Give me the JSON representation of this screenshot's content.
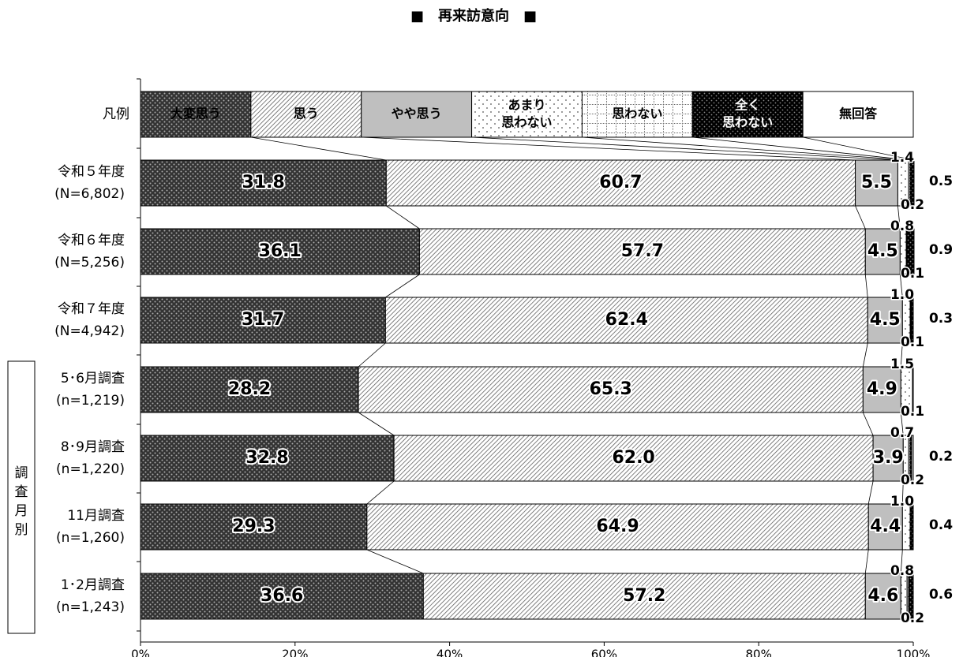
{
  "chart_data": {
    "type": "bar",
    "orientation": "horizontal",
    "stacked": "100%",
    "title": "■　再来訪意向　■",
    "legend_row_label": "凡例",
    "group_label": "調査月別",
    "series": [
      {
        "name": "大変思う",
        "pattern": "dense-dots-dark",
        "label_color": "#000000"
      },
      {
        "name": "思う",
        "pattern": "diagonal-hatch",
        "label_color": "#000000"
      },
      {
        "name": "やや思う",
        "pattern": "solid-gray",
        "label_color": "#000000"
      },
      {
        "name": "あまり\n思わない",
        "pattern": "sparse-dots",
        "label_color": "#000000"
      },
      {
        "name": "思わない",
        "pattern": "grid-dotted",
        "label_color": "#000000"
      },
      {
        "name": "全く\n思わない",
        "pattern": "black-dots",
        "label_color": "#ffffff"
      },
      {
        "name": "無回答",
        "pattern": "white",
        "label_color": "#000000"
      }
    ],
    "categories": [
      {
        "label": "令和５年度",
        "n": "(N=6,802)",
        "values": [
          31.8,
          60.7,
          5.5,
          1.4,
          0.2,
          0.5,
          0.0
        ],
        "small_labels": [
          "1.4",
          "0.2",
          "0.5"
        ]
      },
      {
        "label": "令和６年度",
        "n": "(N=5,256)",
        "values": [
          36.1,
          57.7,
          4.5,
          0.8,
          0.1,
          0.9,
          0.0
        ],
        "small_labels": [
          "0.8",
          "0.1",
          "0.9"
        ]
      },
      {
        "label": "令和７年度",
        "n": "(N=4,942)",
        "values": [
          31.7,
          62.4,
          4.5,
          1.0,
          0.1,
          0.3,
          0.0
        ],
        "small_labels": [
          "1.0",
          "0.1",
          "0.3"
        ]
      },
      {
        "label": "5･6月調査",
        "n": "(n=1,219)",
        "values": [
          28.2,
          65.3,
          4.9,
          1.5,
          0.1,
          0.0,
          0.0
        ],
        "small_labels": [
          "1.5",
          "0.1",
          ""
        ]
      },
      {
        "label": "8･9月調査",
        "n": "(n=1,220)",
        "values": [
          32.8,
          62.0,
          3.9,
          0.7,
          0.2,
          0.2,
          0.0
        ],
        "small_labels": [
          "0.7",
          "0.2",
          "0.2"
        ]
      },
      {
        "label": "11月調査",
        "n": "(n=1,260)",
        "values": [
          29.3,
          64.9,
          4.4,
          1.0,
          0.0,
          0.4,
          0.0
        ],
        "small_labels": [
          "1.0",
          "",
          "0.4"
        ]
      },
      {
        "label": "1･2月調査",
        "n": "(n=1,243)",
        "values": [
          36.6,
          57.2,
          4.6,
          0.8,
          0.2,
          0.6,
          0.0
        ],
        "small_labels": [
          "0.8",
          "0.2",
          "0.6"
        ]
      }
    ],
    "group_rows": [
      3,
      4,
      5,
      6
    ],
    "xlim": [
      0,
      100
    ],
    "xticks": [
      "0%",
      "20%",
      "40%",
      "60%",
      "80%",
      "100%"
    ],
    "grid": false
  }
}
